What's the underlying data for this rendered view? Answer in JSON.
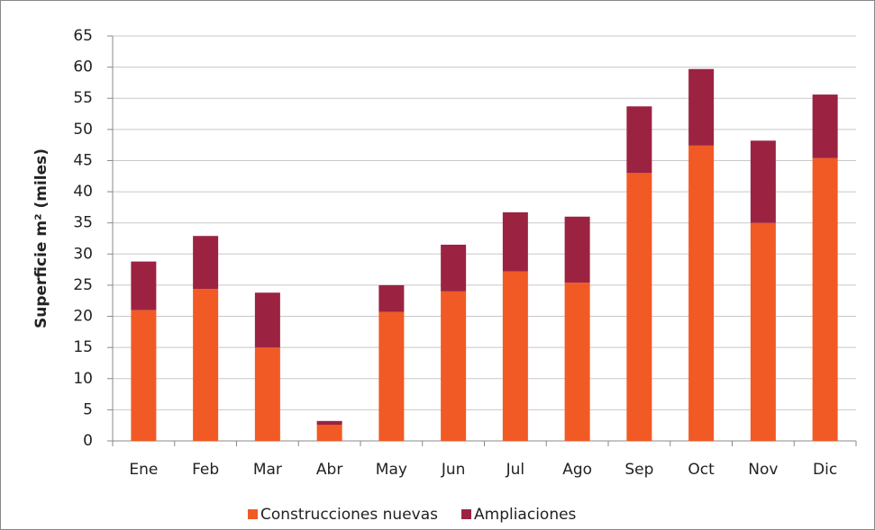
{
  "chart_data": {
    "type": "stacked_bar",
    "y_label": "Superficie m² (miles)",
    "categories": [
      "Ene",
      "Feb",
      "Mar",
      "Abr",
      "May",
      "Jun",
      "Jul",
      "Ago",
      "Sep",
      "Oct",
      "Nov",
      "Dic"
    ],
    "series": [
      {
        "name": "Construcciones nuevas",
        "color": "#f15a24",
        "values": [
          21,
          24.4,
          15,
          2.6,
          20.7,
          24,
          27.2,
          25.4,
          43,
          47.4,
          35,
          45.4
        ]
      },
      {
        "name": "Ampliaciones",
        "color": "#9b2341",
        "values": [
          7.8,
          8.5,
          8.8,
          0.6,
          4.3,
          7.5,
          9.5,
          10.6,
          10.7,
          12.3,
          13.2,
          10.2
        ]
      }
    ],
    "ylim": [
      0,
      65
    ],
    "yticks": [
      0,
      5,
      10,
      15,
      20,
      25,
      30,
      35,
      40,
      45,
      50,
      55,
      60,
      65
    ],
    "grid": true
  }
}
